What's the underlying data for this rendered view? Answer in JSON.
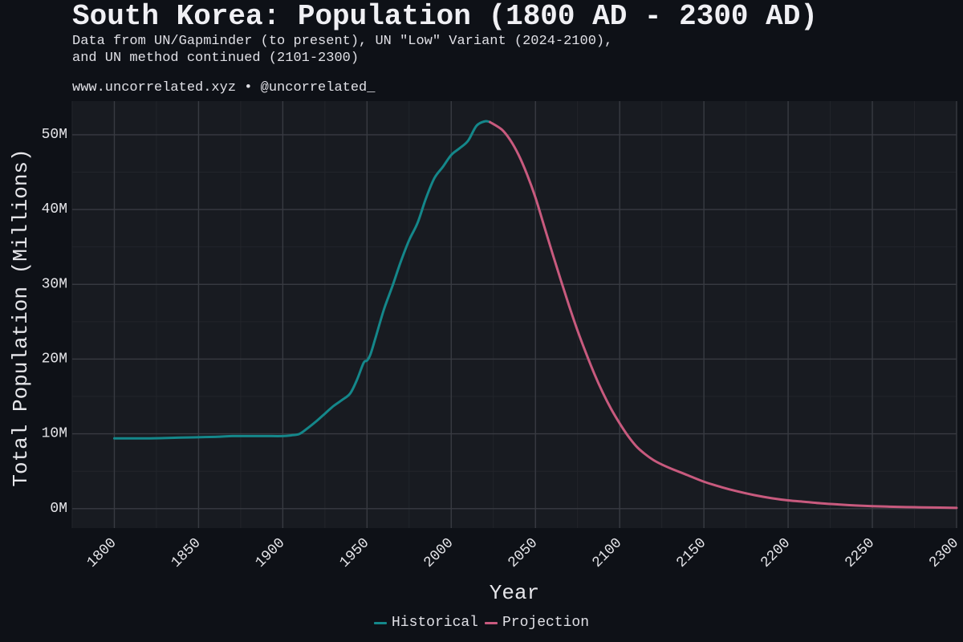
{
  "header": {
    "title": "South Korea: Population (1800 AD - 2300 AD)",
    "subtitle_line1": "Data from UN/Gapminder (to present), UN \"Low\" Variant (2024-2100),",
    "subtitle_line2": "and UN method continued (2101-2300)",
    "credit": "www.uncorrelated.xyz • @uncorrelated_"
  },
  "colors": {
    "historical": "#14878a",
    "projection": "#c85a7e",
    "panel": "#181b21",
    "grid_major": "#383b42",
    "grid_minor": "#22252b",
    "axis_text": "#e6e6ea"
  },
  "chart_data": {
    "type": "line",
    "xlabel": "Year",
    "ylabel": "Total Population (Millions)",
    "xlim": [
      1775,
      2300
    ],
    "ylim": [
      -2.6,
      54.5
    ],
    "x_ticks": [
      1800,
      1850,
      1900,
      1950,
      2000,
      2050,
      2100,
      2150,
      2200,
      2250,
      2300
    ],
    "x_tick_labels": [
      "1800",
      "1850",
      "1900",
      "1950",
      "2000",
      "2050",
      "2100",
      "2150",
      "2200",
      "2250",
      "2300"
    ],
    "y_ticks": [
      0,
      10,
      20,
      30,
      40,
      50
    ],
    "y_tick_labels": [
      "0M",
      "10M",
      "20M",
      "30M",
      "40M",
      "50M"
    ],
    "legend": [
      "Historical",
      "Projection"
    ],
    "legend_position": "bottom",
    "grid": true,
    "series": [
      {
        "name": "Historical",
        "x": [
          1800,
          1820,
          1840,
          1860,
          1870,
          1880,
          1890,
          1900,
          1905,
          1910,
          1915,
          1920,
          1925,
          1930,
          1935,
          1940,
          1944,
          1948,
          1950,
          1952,
          1955,
          1960,
          1965,
          1970,
          1975,
          1980,
          1985,
          1990,
          1995,
          2000,
          2005,
          2010,
          2015,
          2020,
          2023
        ],
        "values": [
          9.4,
          9.4,
          9.5,
          9.6,
          9.7,
          9.7,
          9.7,
          9.7,
          9.8,
          10.0,
          10.8,
          11.7,
          12.7,
          13.7,
          14.5,
          15.4,
          17.2,
          19.5,
          19.8,
          20.6,
          22.8,
          26.6,
          29.7,
          33.0,
          35.9,
          38.2,
          41.5,
          44.2,
          45.7,
          47.3,
          48.2,
          49.2,
          51.2,
          51.8,
          51.7
        ]
      },
      {
        "name": "Projection",
        "x": [
          2023,
          2030,
          2035,
          2040,
          2045,
          2050,
          2055,
          2060,
          2065,
          2070,
          2075,
          2080,
          2085,
          2090,
          2095,
          2100,
          2105,
          2110,
          2115,
          2120,
          2125,
          2130,
          2140,
          2150,
          2160,
          2170,
          2180,
          2190,
          2200,
          2210,
          2220,
          2230,
          2240,
          2250,
          2260,
          2270,
          2280,
          2290,
          2300
        ],
        "values": [
          51.7,
          50.7,
          49.3,
          47.3,
          44.7,
          41.6,
          37.9,
          34.2,
          30.6,
          27.1,
          23.8,
          20.8,
          18.0,
          15.5,
          13.3,
          11.4,
          9.7,
          8.3,
          7.3,
          6.5,
          5.9,
          5.4,
          4.5,
          3.6,
          2.9,
          2.3,
          1.8,
          1.4,
          1.1,
          0.9,
          0.7,
          0.55,
          0.42,
          0.33,
          0.26,
          0.21,
          0.17,
          0.14,
          0.1
        ]
      }
    ]
  }
}
